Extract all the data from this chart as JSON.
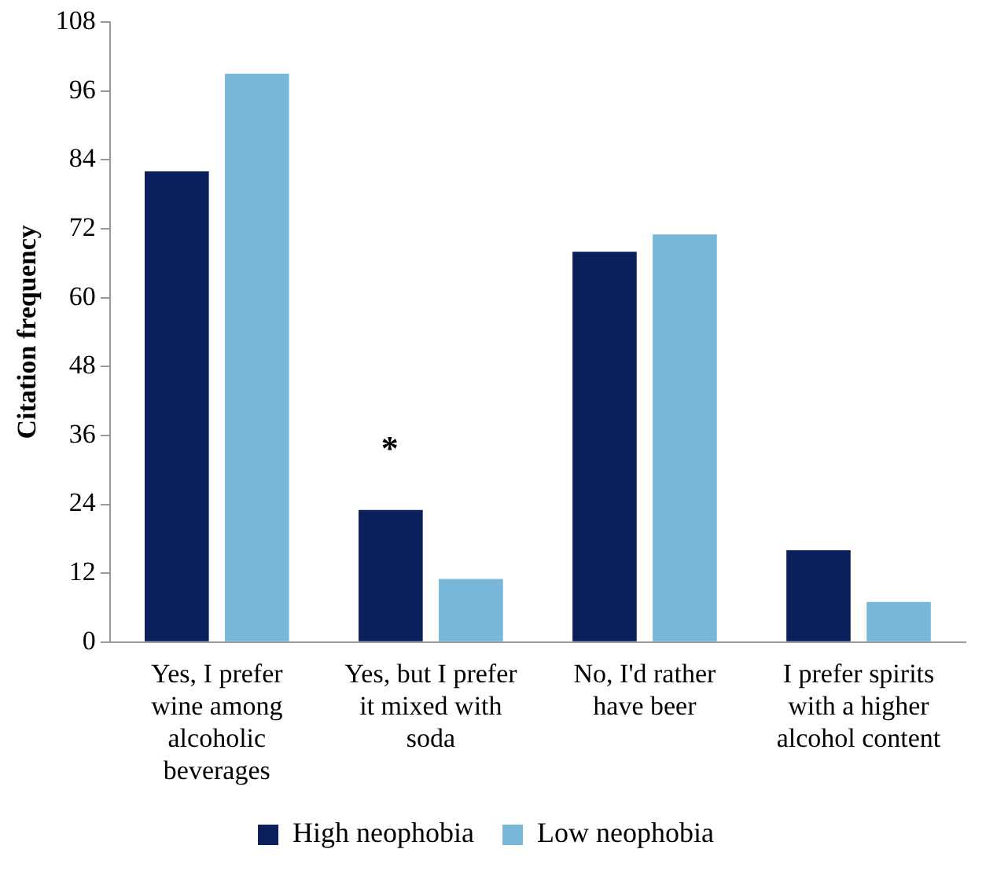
{
  "chart_data": {
    "type": "bar",
    "ylabel": "Citation frequency",
    "categories": [
      "Yes, I prefer wine among alcoholic beverages",
      "Yes, but I prefer it mixed with soda",
      "No, I'd rather have beer",
      "I prefer spirits with a higher alcohol content"
    ],
    "series": [
      {
        "name": "High neophobia",
        "color": "#0b1f5c",
        "values": [
          82,
          23,
          68,
          16
        ]
      },
      {
        "name": "Low neophobia",
        "color": "#78b7da",
        "values": [
          99,
          11,
          71,
          7
        ]
      }
    ],
    "ylim": [
      0,
      108
    ],
    "yticks": [
      0,
      12,
      24,
      36,
      48,
      60,
      72,
      84,
      96,
      108
    ],
    "grid": false,
    "legend": "bottom",
    "annotations": [
      "*"
    ]
  }
}
